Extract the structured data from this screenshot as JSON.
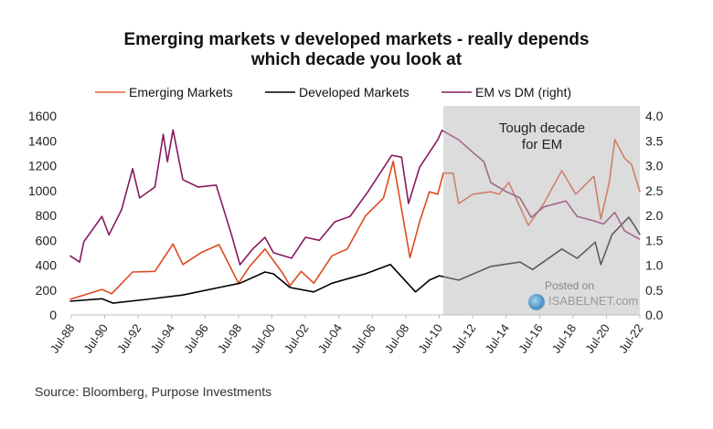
{
  "chart_data": {
    "type": "line",
    "title": "Emerging markets v developed markets - really depends which decade you look at",
    "title_lines": [
      "Emerging markets v developed markets - really depends",
      "which decade you look at"
    ],
    "legend_placement": "top",
    "grid": false,
    "x_ticks": [
      "Jul-88",
      "Jul-90",
      "Jul-92",
      "Jul-94",
      "Jul-96",
      "Jul-98",
      "Jul-00",
      "Jul-02",
      "Jul-04",
      "Jul-06",
      "Jul-08",
      "Jul-10",
      "Jul-12",
      "Jul-14",
      "Jul-16",
      "Jul-18",
      "Jul-20",
      "Jul-22"
    ],
    "xlim": [
      "1988-07",
      "2022-07"
    ],
    "y_left": {
      "lim": [
        0,
        1600
      ],
      "ticks": [
        "0",
        "200",
        "400",
        "600",
        "800",
        "1000",
        "1200",
        "1400",
        "1600"
      ]
    },
    "y_right": {
      "lim": [
        0,
        4
      ],
      "ticks": [
        "0.0",
        "0.5",
        "1.0",
        "1.5",
        "2.0",
        "2.5",
        "3.0",
        "3.5",
        "4.0"
      ]
    },
    "shaded_region": {
      "from": "2010-10",
      "to": "2022-07",
      "label_lines": [
        "Tough decade",
        "for EM"
      ]
    },
    "series": [
      {
        "name": "Emerging Markets",
        "axis": "left",
        "color": "#dd4a1e",
        "legend_color": "#e8603a",
        "points": [
          [
            "1988-06",
            125
          ],
          [
            "1990-05",
            205
          ],
          [
            "1990-12",
            170
          ],
          [
            "1992-03",
            345
          ],
          [
            "1993-07",
            350
          ],
          [
            "1994-08",
            570
          ],
          [
            "1995-03",
            405
          ],
          [
            "1996-04",
            500
          ],
          [
            "1997-05",
            565
          ],
          [
            "1998-07",
            255
          ],
          [
            "1999-03",
            390
          ],
          [
            "2000-02",
            530
          ],
          [
            "2001-03",
            330
          ],
          [
            "2001-08",
            235
          ],
          [
            "2002-04",
            350
          ],
          [
            "2003-01",
            255
          ],
          [
            "2004-02",
            475
          ],
          [
            "2005-01",
            530
          ],
          [
            "2006-02",
            795
          ],
          [
            "2007-03",
            940
          ],
          [
            "2007-10",
            1235
          ],
          [
            "2008-10",
            460
          ],
          [
            "2009-05",
            750
          ],
          [
            "2009-12",
            990
          ],
          [
            "2010-06",
            970
          ],
          [
            "2010-10",
            1140
          ],
          [
            "2011-05",
            1140
          ],
          [
            "2011-09",
            895
          ],
          [
            "2012-07",
            970
          ],
          [
            "2013-08",
            990
          ],
          [
            "2014-02",
            970
          ],
          [
            "2014-09",
            1065
          ],
          [
            "2015-11",
            720
          ],
          [
            "2016-10",
            895
          ],
          [
            "2017-11",
            1160
          ],
          [
            "2018-09",
            970
          ],
          [
            "2019-10",
            1115
          ],
          [
            "2020-03",
            770
          ],
          [
            "2020-09",
            1065
          ],
          [
            "2021-01",
            1410
          ],
          [
            "2021-08",
            1260
          ],
          [
            "2022-01",
            1210
          ],
          [
            "2022-07",
            990
          ]
        ]
      },
      {
        "name": "Developed Markets",
        "axis": "left",
        "color": "#000000",
        "legend_color": "#000000",
        "points": [
          [
            "1988-06",
            110
          ],
          [
            "1990-05",
            130
          ],
          [
            "1991-01",
            95
          ],
          [
            "1993-01",
            125
          ],
          [
            "1995-03",
            160
          ],
          [
            "1997-05",
            220
          ],
          [
            "1998-08",
            255
          ],
          [
            "2000-02",
            345
          ],
          [
            "2000-08",
            330
          ],
          [
            "2001-08",
            220
          ],
          [
            "2003-01",
            185
          ],
          [
            "2004-02",
            255
          ],
          [
            "2006-02",
            330
          ],
          [
            "2007-08",
            405
          ],
          [
            "2009-02",
            185
          ],
          [
            "2009-12",
            280
          ],
          [
            "2010-07",
            315
          ],
          [
            "2011-09",
            280
          ],
          [
            "2013-08",
            390
          ],
          [
            "2015-05",
            425
          ],
          [
            "2016-02",
            365
          ],
          [
            "2017-11",
            530
          ],
          [
            "2018-10",
            455
          ],
          [
            "2019-11",
            585
          ],
          [
            "2020-03",
            405
          ],
          [
            "2020-11",
            645
          ],
          [
            "2021-11",
            785
          ],
          [
            "2022-03",
            720
          ],
          [
            "2022-07",
            645
          ]
        ]
      },
      {
        "name": "EM vs DM (right)",
        "axis": "right",
        "color": "#861a5e",
        "legend_color": "#861a5e",
        "points": [
          [
            "1988-06",
            1.19
          ],
          [
            "1989-01",
            1.06
          ],
          [
            "1989-04",
            1.47
          ],
          [
            "1990-05",
            1.98
          ],
          [
            "1990-10",
            1.61
          ],
          [
            "1991-07",
            2.11
          ],
          [
            "1992-03",
            2.94
          ],
          [
            "1992-08",
            2.35
          ],
          [
            "1993-07",
            2.57
          ],
          [
            "1994-01",
            3.63
          ],
          [
            "1994-04",
            3.08
          ],
          [
            "1994-08",
            3.72
          ],
          [
            "1995-03",
            2.72
          ],
          [
            "1996-02",
            2.57
          ],
          [
            "1997-03",
            2.61
          ],
          [
            "1998-02",
            1.61
          ],
          [
            "1998-08",
            1.01
          ],
          [
            "1999-05",
            1.32
          ],
          [
            "2000-02",
            1.56
          ],
          [
            "2000-08",
            1.25
          ],
          [
            "2001-09",
            1.14
          ],
          [
            "2002-07",
            1.56
          ],
          [
            "2003-05",
            1.5
          ],
          [
            "2004-04",
            1.87
          ],
          [
            "2005-03",
            1.98
          ],
          [
            "2006-04",
            2.48
          ],
          [
            "2007-09",
            3.21
          ],
          [
            "2008-04",
            3.17
          ],
          [
            "2008-09",
            2.24
          ],
          [
            "2009-05",
            2.97
          ],
          [
            "2010-06",
            3.52
          ],
          [
            "2010-09",
            3.71
          ],
          [
            "2011-09",
            3.52
          ],
          [
            "2012-07",
            3.27
          ],
          [
            "2013-03",
            3.08
          ],
          [
            "2013-08",
            2.66
          ],
          [
            "2014-07",
            2.48
          ],
          [
            "2015-05",
            2.35
          ],
          [
            "2016-01",
            1.96
          ],
          [
            "2016-10",
            2.17
          ],
          [
            "2018-02",
            2.29
          ],
          [
            "2018-10",
            1.98
          ],
          [
            "2019-10",
            1.89
          ],
          [
            "2020-05",
            1.83
          ],
          [
            "2021-01",
            2.06
          ],
          [
            "2021-08",
            1.69
          ],
          [
            "2022-07",
            1.52
          ]
        ]
      }
    ],
    "source": "Source: Bloomberg, Purpose Investments",
    "watermark": {
      "line1": "Posted on",
      "line2": "ISABELNET.com"
    }
  }
}
